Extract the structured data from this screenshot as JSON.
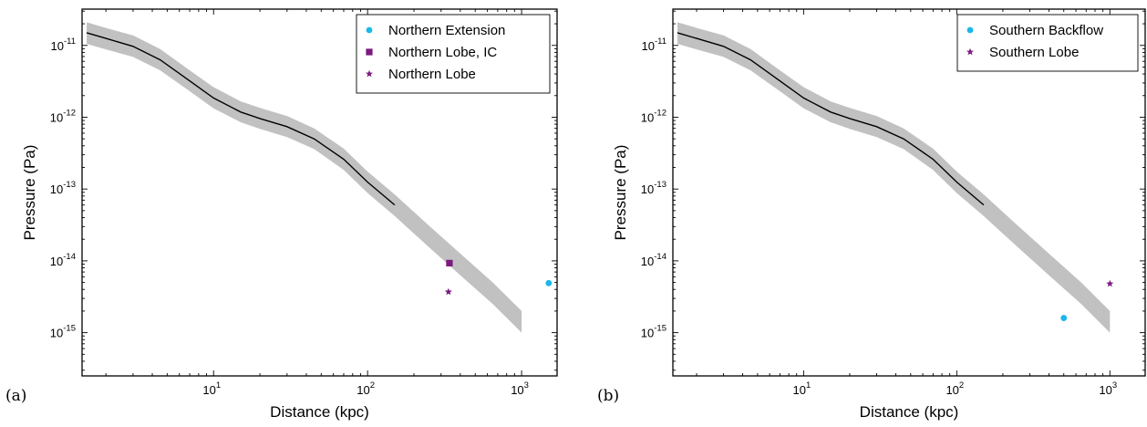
{
  "chart_data": [
    {
      "type": "line",
      "panel_label": "(a)",
      "xlabel": "Distance (kpc)",
      "ylabel": "Pressure (Pa)",
      "xscale": "log",
      "yscale": "log",
      "xlim": [
        1.4,
        1700
      ],
      "ylim": [
        2.5e-16,
        3.2e-11
      ],
      "xticks": [
        10,
        100,
        1000
      ],
      "xtick_labels": [
        {
          "base": "10",
          "exp": "1"
        },
        {
          "base": "10",
          "exp": "2"
        },
        {
          "base": "10",
          "exp": "3"
        }
      ],
      "yticks": [
        1e-15,
        1e-14,
        1e-13,
        1e-12,
        1e-11
      ],
      "ytick_labels": [
        {
          "base": "10",
          "exp": "-15"
        },
        {
          "base": "10",
          "exp": "-14"
        },
        {
          "base": "10",
          "exp": "-13"
        },
        {
          "base": "10",
          "exp": "-12"
        },
        {
          "base": "10",
          "exp": "-11"
        }
      ],
      "grid": false,
      "legend_position": "top-right",
      "model_line": {
        "x": [
          1.5,
          2,
          3,
          4.5,
          7,
          10,
          15,
          20,
          30,
          45,
          70,
          100,
          150
        ],
        "y": [
          1.5e-11,
          1.25e-11,
          9.7e-12,
          6.3e-12,
          3.2e-12,
          1.85e-12,
          1.18e-12,
          9.6e-13,
          7.4e-13,
          5e-13,
          2.6e-13,
          1.25e-13,
          6e-14
        ]
      },
      "model_band": {
        "x": [
          1.5,
          2,
          3,
          4.5,
          7,
          10,
          15,
          20,
          30,
          45,
          70,
          100,
          150,
          250,
          400,
          650,
          1000
        ],
        "y_low": [
          1.05e-11,
          8.8e-12,
          6.9e-12,
          4.5e-12,
          2.3e-12,
          1.33e-12,
          8.5e-13,
          6.9e-13,
          5.3e-13,
          3.6e-13,
          1.85e-13,
          8.8e-14,
          4.2e-14,
          1.55e-14,
          6.3e-15,
          2.5e-15,
          1e-15
        ],
        "y_high": [
          2.1e-11,
          1.75e-11,
          1.38e-11,
          8.9e-12,
          4.5e-12,
          2.62e-12,
          1.66e-12,
          1.35e-12,
          1.04e-12,
          7e-13,
          3.65e-13,
          1.75e-13,
          8.4e-14,
          3.1e-14,
          1.26e-14,
          5e-15,
          2e-15
        ]
      },
      "series": [
        {
          "name": "Northern Extension",
          "marker": "circle",
          "color": "#1ab8ea",
          "x": [
            1500
          ],
          "y": [
            4.9e-15
          ]
        },
        {
          "name": "Northern Lobe, IC",
          "marker": "square",
          "color": "#7b1a7f",
          "x": [
            340
          ],
          "y": [
            9.3e-15
          ]
        },
        {
          "name": "Northern Lobe",
          "marker": "star",
          "color": "#7b1a7f",
          "x": [
            335
          ],
          "y": [
            3.7e-15
          ]
        }
      ]
    },
    {
      "type": "line",
      "panel_label": "(b)",
      "xlabel": "Distance (kpc)",
      "ylabel": "Pressure (Pa)",
      "xscale": "log",
      "yscale": "log",
      "xlim": [
        1.4,
        1700
      ],
      "ylim": [
        2.5e-16,
        3.2e-11
      ],
      "xticks": [
        10,
        100,
        1000
      ],
      "xtick_labels": [
        {
          "base": "10",
          "exp": "1"
        },
        {
          "base": "10",
          "exp": "2"
        },
        {
          "base": "10",
          "exp": "3"
        }
      ],
      "yticks": [
        1e-15,
        1e-14,
        1e-13,
        1e-12,
        1e-11
      ],
      "ytick_labels": [
        {
          "base": "10",
          "exp": "-15"
        },
        {
          "base": "10",
          "exp": "-14"
        },
        {
          "base": "10",
          "exp": "-13"
        },
        {
          "base": "10",
          "exp": "-12"
        },
        {
          "base": "10",
          "exp": "-11"
        }
      ],
      "grid": false,
      "legend_position": "top-right",
      "model_line": {
        "x": [
          1.5,
          2,
          3,
          4.5,
          7,
          10,
          15,
          20,
          30,
          45,
          70,
          100,
          150
        ],
        "y": [
          1.5e-11,
          1.25e-11,
          9.7e-12,
          6.3e-12,
          3.2e-12,
          1.85e-12,
          1.18e-12,
          9.6e-13,
          7.4e-13,
          5e-13,
          2.6e-13,
          1.25e-13,
          6e-14
        ]
      },
      "model_band": {
        "x": [
          1.5,
          2,
          3,
          4.5,
          7,
          10,
          15,
          20,
          30,
          45,
          70,
          100,
          150,
          250,
          400,
          650,
          1000
        ],
        "y_low": [
          1.05e-11,
          8.8e-12,
          6.9e-12,
          4.5e-12,
          2.3e-12,
          1.33e-12,
          8.5e-13,
          6.9e-13,
          5.3e-13,
          3.6e-13,
          1.85e-13,
          8.8e-14,
          4.2e-14,
          1.55e-14,
          6.3e-15,
          2.5e-15,
          1e-15
        ],
        "y_high": [
          2.1e-11,
          1.75e-11,
          1.38e-11,
          8.9e-12,
          4.5e-12,
          2.62e-12,
          1.66e-12,
          1.35e-12,
          1.04e-12,
          7e-13,
          3.65e-13,
          1.75e-13,
          8.4e-14,
          3.1e-14,
          1.26e-14,
          5e-15,
          2e-15
        ]
      },
      "series": [
        {
          "name": "Southern Backflow",
          "marker": "circle",
          "color": "#1ab8ea",
          "x": [
            500
          ],
          "y": [
            1.6e-15
          ]
        },
        {
          "name": "Southern Lobe",
          "marker": "star",
          "color": "#7b1a7f",
          "x": [
            1000
          ],
          "y": [
            4.8e-15
          ]
        }
      ]
    }
  ]
}
